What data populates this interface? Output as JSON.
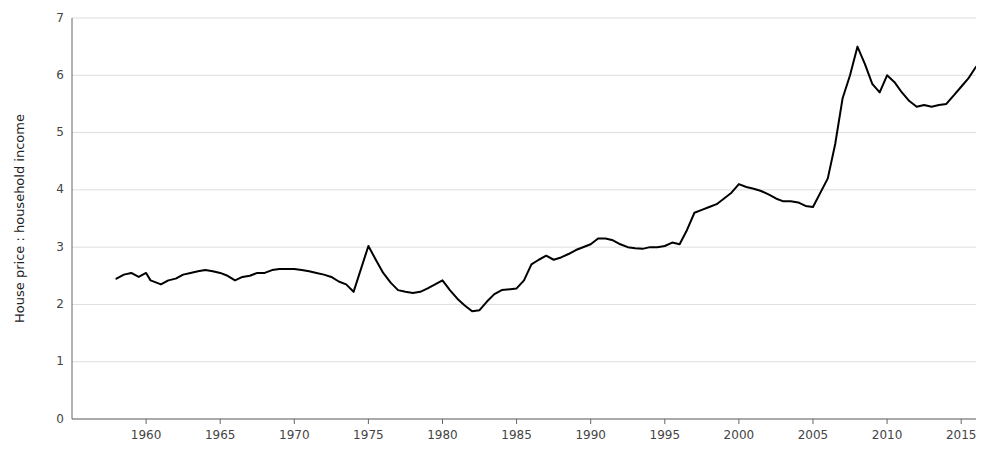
{
  "chart_data": {
    "type": "line",
    "ylabel": "House price : household income",
    "xlim": [
      1955,
      2016
    ],
    "ylim": [
      0,
      7
    ],
    "xticks": [
      1960,
      1965,
      1970,
      1975,
      1980,
      1985,
      1990,
      1995,
      2000,
      2005,
      2010,
      2015
    ],
    "yticks": [
      0,
      1,
      2,
      3,
      4,
      5,
      6,
      7
    ],
    "grid": true,
    "color": "#000000",
    "x": [
      1958,
      1958.5,
      1959,
      1959.5,
      1960,
      1960.3,
      1960.7,
      1961,
      1961.5,
      1962,
      1962.5,
      1963,
      1963.5,
      1964,
      1964.5,
      1965,
      1965.5,
      1966,
      1966.5,
      1967,
      1967.5,
      1968,
      1968.5,
      1969,
      1969.5,
      1970,
      1970.5,
      1971,
      1971.5,
      1972,
      1972.5,
      1973,
      1973.5,
      1974,
      1975,
      1975.5,
      1976,
      1976.5,
      1977,
      1977.5,
      1978,
      1978.5,
      1979,
      1979.5,
      1980,
      1980.5,
      1981,
      1981.5,
      1982,
      1982.5,
      1983,
      1983.5,
      1984,
      1985,
      1985.5,
      1986,
      1986.5,
      1987,
      1987.5,
      1988,
      1988.5,
      1989,
      1990,
      1990.5,
      1991,
      1991.5,
      1992,
      1992.5,
      1993,
      1993.5,
      1994,
      1994.5,
      1995,
      1995.5,
      1996,
      1996.5,
      1997,
      1997.5,
      1998,
      1998.5,
      1999,
      1999.5,
      2000,
      2000.5,
      2001,
      2001.5,
      2002,
      2002.5,
      2003,
      2003.5,
      2004,
      2004.5,
      2005,
      2006,
      2006.5,
      2007,
      2007.5,
      2008,
      2008.5,
      2009,
      2009.5,
      2010,
      2010.5,
      2011,
      2011.5,
      2012,
      2012.5,
      2013,
      2013.5,
      2014,
      2014.5,
      2015,
      2015.5,
      2016
    ],
    "values": [
      2.45,
      2.52,
      2.55,
      2.48,
      2.55,
      2.42,
      2.38,
      2.35,
      2.42,
      2.45,
      2.52,
      2.55,
      2.58,
      2.6,
      2.58,
      2.55,
      2.5,
      2.42,
      2.48,
      2.5,
      2.55,
      2.55,
      2.6,
      2.62,
      2.62,
      2.62,
      2.6,
      2.58,
      2.55,
      2.52,
      2.48,
      2.4,
      2.35,
      2.22,
      3.02,
      2.78,
      2.55,
      2.38,
      2.25,
      2.22,
      2.2,
      2.22,
      2.28,
      2.35,
      2.42,
      2.25,
      2.1,
      1.98,
      1.88,
      1.9,
      2.05,
      2.18,
      2.25,
      2.28,
      2.42,
      2.7,
      2.78,
      2.85,
      2.78,
      2.82,
      2.88,
      2.95,
      3.05,
      3.15,
      3.15,
      3.12,
      3.05,
      3.0,
      2.98,
      2.97,
      3.0,
      3.0,
      3.02,
      3.08,
      3.05,
      3.3,
      3.6,
      3.65,
      3.7,
      3.75,
      3.85,
      3.95,
      4.1,
      4.05,
      4.02,
      3.98,
      3.92,
      3.85,
      3.8,
      3.8,
      3.78,
      3.72,
      3.7,
      4.2,
      4.8,
      5.6,
      6.0,
      6.5,
      6.2,
      5.85,
      5.7,
      6.0,
      5.88,
      5.7,
      5.55,
      5.45,
      5.48,
      5.45,
      5.48,
      5.5,
      5.65,
      5.8,
      5.95,
      6.15
    ]
  }
}
